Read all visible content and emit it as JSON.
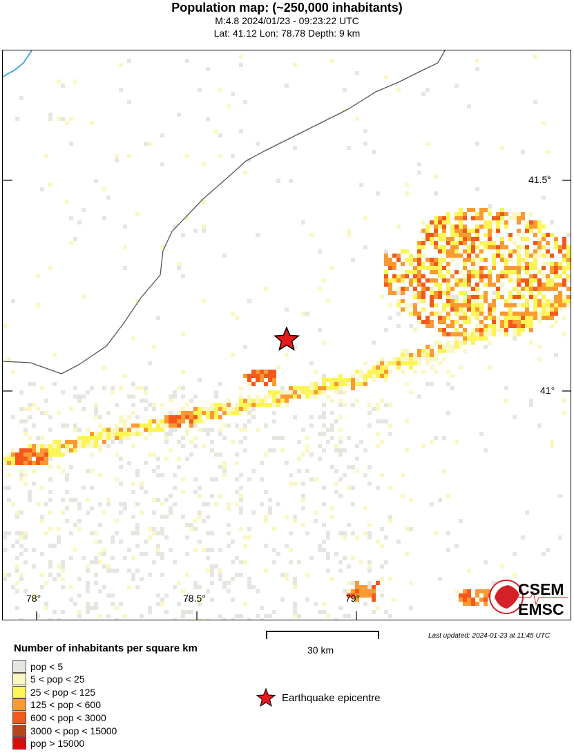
{
  "header": {
    "title": "Population map: (~250,000 inhabitants)",
    "event": "M:4.8 2024/01/23 - 09:23:22 UTC",
    "location": "Lat: 41.12 Lon: 78.78 Depth: 9 km"
  },
  "map": {
    "lon_ticks": [
      "78°",
      "78.5°",
      "79°"
    ],
    "lat_ticks": [
      "41.5°",
      "41°"
    ],
    "epicentre": {
      "lat": 41.12,
      "lon": 78.78,
      "icon": "red-star-icon",
      "color": "#e41a1c"
    },
    "border_color": "#555555",
    "river_color": "#4aa8d8"
  },
  "scale_bar": {
    "label": "30 km"
  },
  "last_updated": "Last updated: 2024-01-23 at 11:45 UTC",
  "legend": {
    "title": "Number of inhabitants per square km",
    "items": [
      {
        "label": "pop < 5",
        "color": "#e6e6e1"
      },
      {
        "label": "5 < pop < 25",
        "color": "#fbf7c4"
      },
      {
        "label": "25 < pop < 125",
        "color": "#fbf557"
      },
      {
        "label": "125 < pop < 600",
        "color": "#f99a32"
      },
      {
        "label": "600 < pop < 3000",
        "color": "#f4581a"
      },
      {
        "label": "3000 < pop < 15000",
        "color": "#b5471a"
      },
      {
        "label": "pop > 15000",
        "color": "#d4100e"
      }
    ],
    "epicentre_label": "Earthquake epicentre"
  },
  "logo": {
    "top": "CSEM",
    "bottom": "EMSC"
  }
}
